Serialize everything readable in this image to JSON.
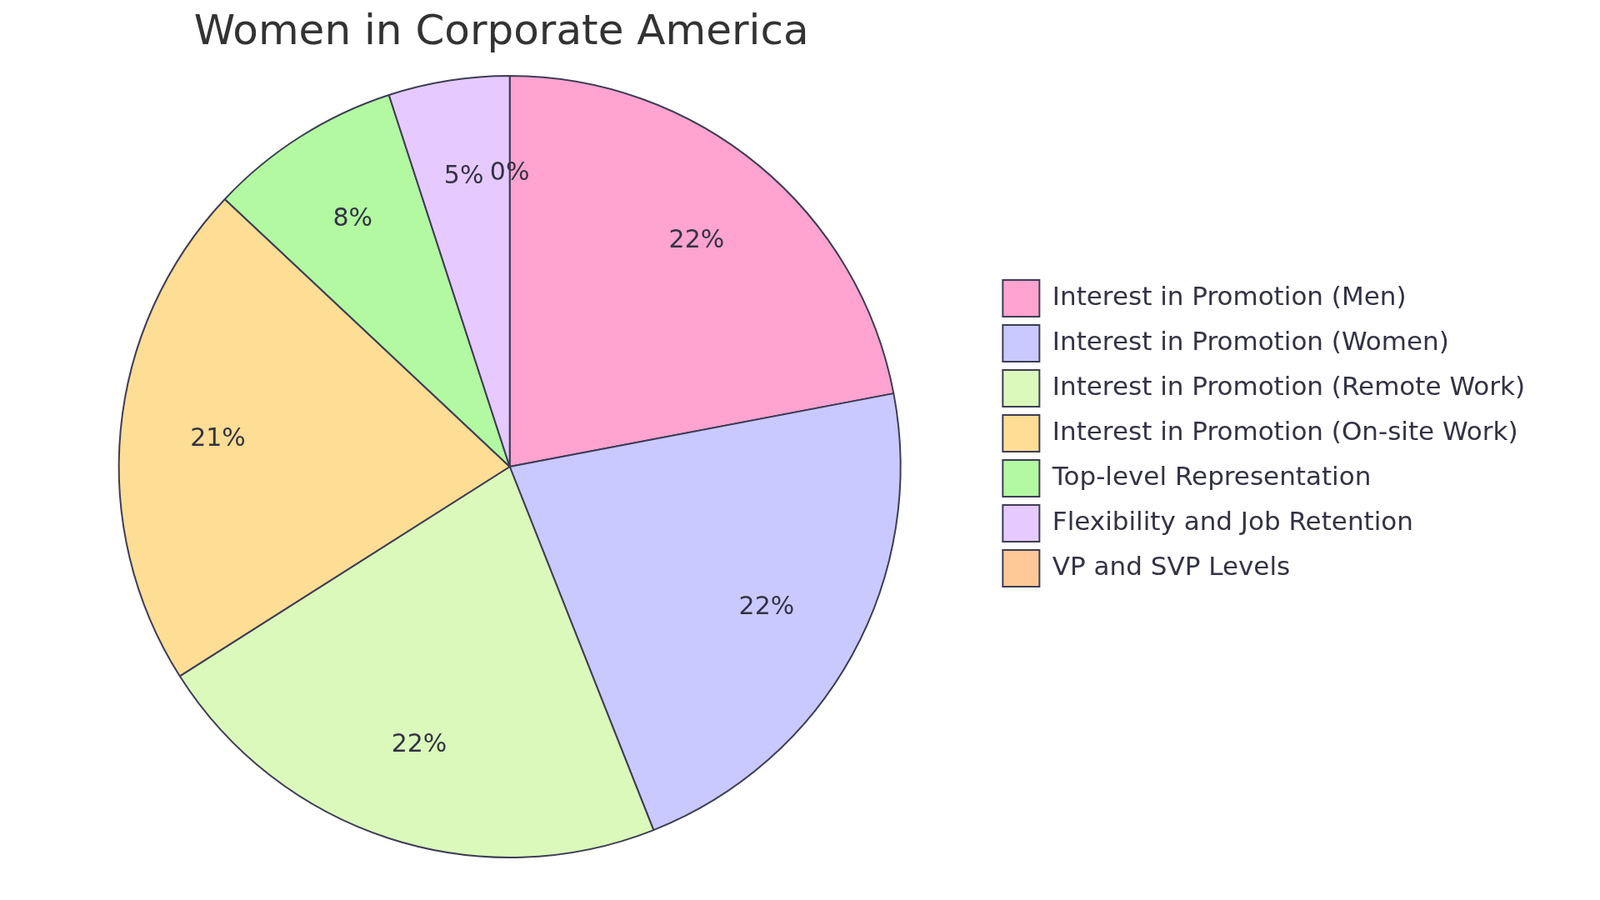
{
  "chart_data": {
    "type": "pie",
    "title": "Women in Corporate America",
    "categories": [
      "Interest in Promotion (Men)",
      "Interest in Promotion (Women)",
      "Interest in Promotion (Remote Work)",
      "Interest in Promotion (On-site Work)",
      "Top-level Representation",
      "Flexibility and Job Retention",
      "VP and SVP Levels"
    ],
    "values": [
      22,
      22,
      22,
      21,
      8,
      5,
      0
    ],
    "value_labels": [
      "22%",
      "22%",
      "22%",
      "21%",
      "8%",
      "5%",
      "0%"
    ],
    "colors": [
      "#ffa3d0",
      "#c9c9ff",
      "#dbf9bb",
      "#fedd95",
      "#b2f9a1",
      "#e6caff",
      "#ffc896"
    ],
    "data_labels": true,
    "legend": "right"
  }
}
